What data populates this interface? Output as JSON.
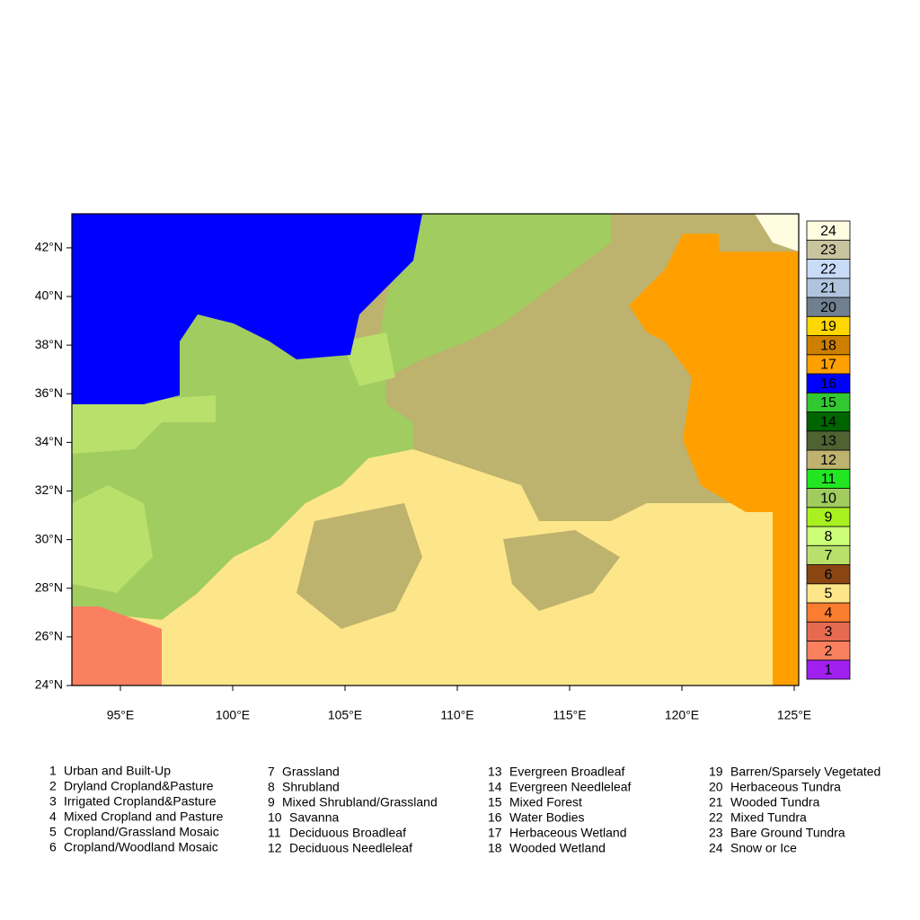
{
  "map": {
    "lonlim": [
      92.84,
      125.2
    ],
    "latlim": [
      24,
      43.4
    ],
    "lon_ticks": [
      {
        "value": 95,
        "label": "95°E"
      },
      {
        "value": 100,
        "label": "100°E"
      },
      {
        "value": 105,
        "label": "105°E"
      },
      {
        "value": 110,
        "label": "110°E"
      },
      {
        "value": 115,
        "label": "115°E"
      },
      {
        "value": 120,
        "label": "120°E"
      },
      {
        "value": 125,
        "label": "125°E"
      }
    ],
    "lat_ticks": [
      {
        "value": 24,
        "label": "24°N"
      },
      {
        "value": 26,
        "label": "26°N"
      },
      {
        "value": 28,
        "label": "28°N"
      },
      {
        "value": 30,
        "label": "30°N"
      },
      {
        "value": 32,
        "label": "32°N"
      },
      {
        "value": 34,
        "label": "34°N"
      },
      {
        "value": 36,
        "label": "36°N"
      },
      {
        "value": 38,
        "label": "38°N"
      },
      {
        "value": 40,
        "label": "40°N"
      },
      {
        "value": 42,
        "label": "42°N"
      }
    ],
    "classes": [
      {
        "code": 1,
        "name": "Urban and Built-Up",
        "color": "#a020f0"
      },
      {
        "code": 2,
        "name": "Dryland Cropland&Pasture",
        "color": "#fa8060"
      },
      {
        "code": 3,
        "name": "Irrigated Cropland&Pasture",
        "color": "#e56a50"
      },
      {
        "code": 4,
        "name": "Mixed Cropland and Pasture",
        "color": "#fa7d30"
      },
      {
        "code": 5,
        "name": "Cropland/Grassland Mosaic",
        "color": "#fde68a"
      },
      {
        "code": 6,
        "name": "Cropland/Woodland Mosaic",
        "color": "#8b4513"
      },
      {
        "code": 7,
        "name": "Grassland",
        "color": "#b8e06a"
      },
      {
        "code": 8,
        "name": "Shrubland",
        "color": "#ccff77"
      },
      {
        "code": 9,
        "name": "Mixed Shrubland/Grassland",
        "color": "#a8f020"
      },
      {
        "code": 10,
        "name": "Savanna",
        "color": "#a0cc60"
      },
      {
        "code": 11,
        "name": "Deciduous Broadleaf",
        "color": "#22e622"
      },
      {
        "code": 12,
        "name": "Deciduous Needleleaf",
        "color": "#bdb26e"
      },
      {
        "code": 13,
        "name": "Evergreen Broadleaf",
        "color": "#4f6232"
      },
      {
        "code": 14,
        "name": "Evergreen Needleleaf",
        "color": "#006400"
      },
      {
        "code": 15,
        "name": "Mixed Forest",
        "color": "#32c832"
      },
      {
        "code": 16,
        "name": "Water Bodies",
        "color": "#0000ff"
      },
      {
        "code": 17,
        "name": "Herbaceous Wetland",
        "color": "#ffa000"
      },
      {
        "code": 18,
        "name": "Wooded Wetland",
        "color": "#cd7f00"
      },
      {
        "code": 19,
        "name": "Barren/Sparsely Vegetated",
        "color": "#ffd700"
      },
      {
        "code": 20,
        "name": "Herbaceous Tundra",
        "color": "#708090"
      },
      {
        "code": 21,
        "name": "Wooded Tundra",
        "color": "#b0c4de"
      },
      {
        "code": 22,
        "name": "Mixed Tundra",
        "color": "#c8dcf8"
      },
      {
        "code": 23,
        "name": "Bare Ground Tundra",
        "color": "#c8c4a0"
      },
      {
        "code": 24,
        "name": "Snow or Ice",
        "color": "#fffce0"
      }
    ]
  }
}
